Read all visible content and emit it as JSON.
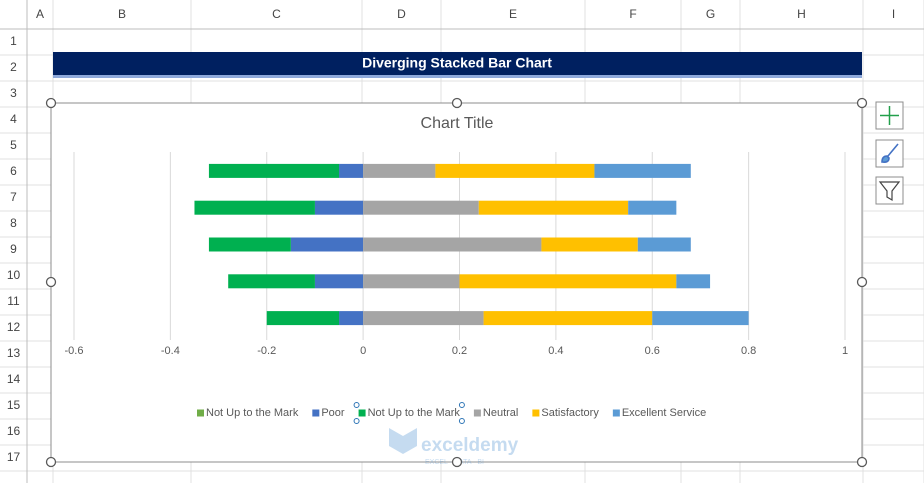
{
  "spreadsheet": {
    "columns": [
      "A",
      "B",
      "C",
      "D",
      "E",
      "F",
      "G",
      "H",
      "I"
    ],
    "rows": [
      1,
      2,
      3,
      4,
      5,
      6,
      7,
      8,
      9,
      10,
      11,
      12,
      13,
      14,
      15,
      16,
      17
    ],
    "banner": "Diverging Stacked Bar Chart"
  },
  "watermark": {
    "name": "exceldemy",
    "tagline": "EXCEL · DATA · BI"
  },
  "chart_data": {
    "type": "bar",
    "orientation": "horizontal",
    "stacked": true,
    "title": "Chart Title",
    "categories": [
      null,
      null,
      null,
      null,
      null
    ],
    "series": [
      {
        "name": "Not Up to the Mark",
        "color": "#70ad47",
        "values": [
          0,
          0,
          0,
          0,
          0
        ]
      },
      {
        "name": "Poor",
        "color": "#4472c4",
        "values": [
          -0.05,
          -0.1,
          -0.15,
          -0.1,
          -0.05
        ]
      },
      {
        "name": "Not Up to the Mark",
        "color": "#00b050",
        "values": [
          -0.27,
          -0.25,
          -0.17,
          -0.18,
          -0.15
        ]
      },
      {
        "name": "Neutral",
        "color": "#a5a5a5",
        "values": [
          0.15,
          0.24,
          0.37,
          0.2,
          0.25
        ]
      },
      {
        "name": "Satisfactory",
        "color": "#ffc000",
        "values": [
          0.33,
          0.31,
          0.2,
          0.45,
          0.35
        ]
      },
      {
        "name": "Excellent Service",
        "color": "#5b9bd5",
        "values": [
          0.2,
          0.1,
          0.11,
          0.07,
          0.2
        ]
      }
    ],
    "xlim": [
      -0.6,
      1
    ],
    "xticks": [
      -0.6,
      -0.4,
      -0.2,
      0,
      0.2,
      0.4,
      0.6,
      0.8,
      1
    ],
    "grid": true,
    "legend": "bottom"
  }
}
